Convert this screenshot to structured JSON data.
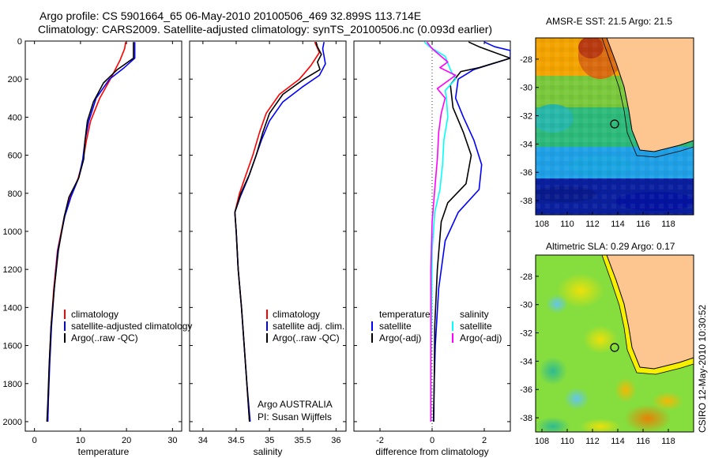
{
  "header": {
    "line1": "Argo profile: CS 5901664_65 06-May-2010 20100506_469 32.899S 113.714E",
    "line2": "Climatology: CARS2009. Satellite-adjusted climatology: synTS_20100506.nc (0.093d earlier)"
  },
  "colors": {
    "climatology": "#ff0000",
    "satellite": "#0000ff",
    "argo": "#000000",
    "argo_adj_salinity": "#ff00ff",
    "satellite_salinity": "#00ffff",
    "land": "#fdc590"
  },
  "chart_data": [
    {
      "type": "line",
      "id": "temperature",
      "xlabel": "temperature",
      "ylabel": "",
      "xlim": [
        -2,
        32
      ],
      "ylim": [
        0,
        2050
      ],
      "y_inverted": true,
      "xticks": [
        0,
        10,
        20,
        30
      ],
      "yticks": [
        0,
        200,
        400,
        600,
        800,
        1000,
        1200,
        1400,
        1600,
        1800,
        2000
      ],
      "legend": [
        "climatology",
        "satellite-adjusted climatology",
        "Argo(..raw -QC)"
      ],
      "series": [
        {
          "name": "climatology",
          "color": "#ff0000",
          "points": [
            [
              19.8,
              5
            ],
            [
              19.6,
              40
            ],
            [
              18.6,
              100
            ],
            [
              16.5,
              200
            ],
            [
              14.2,
              300
            ],
            [
              12.2,
              420
            ],
            [
              11.3,
              520
            ],
            [
              10.6,
              620
            ],
            [
              9.5,
              720
            ],
            [
              7.8,
              820
            ],
            [
              6.5,
              920
            ],
            [
              5.0,
              1100
            ],
            [
              4.2,
              1300
            ],
            [
              3.6,
              1500
            ],
            [
              3.2,
              1700
            ],
            [
              3.0,
              1900
            ],
            [
              2.9,
              2000
            ]
          ]
        },
        {
          "name": "satellite-adjusted climatology",
          "color": "#0000ff",
          "points": [
            [
              21.8,
              5
            ],
            [
              21.8,
              40
            ],
            [
              21.8,
              90
            ],
            [
              19.5,
              140
            ],
            [
              16.3,
              200
            ],
            [
              13.4,
              300
            ],
            [
              11.8,
              420
            ],
            [
              11.0,
              520
            ],
            [
              10.5,
              620
            ],
            [
              9.6,
              720
            ],
            [
              7.9,
              820
            ],
            [
              6.6,
              920
            ],
            [
              5.1,
              1100
            ],
            [
              4.3,
              1300
            ],
            [
              3.7,
              1500
            ],
            [
              3.3,
              1700
            ],
            [
              3.0,
              1900
            ],
            [
              2.9,
              2000
            ]
          ]
        },
        {
          "name": "Argo(..raw -QC)",
          "color": "#000000",
          "points": [
            [
              21.5,
              5
            ],
            [
              21.5,
              50
            ],
            [
              21.5,
              90
            ],
            [
              18.0,
              150
            ],
            [
              15.0,
              220
            ],
            [
              12.8,
              320
            ],
            [
              11.5,
              420
            ],
            [
              11.0,
              520
            ],
            [
              10.7,
              620
            ],
            [
              9.6,
              720
            ],
            [
              7.5,
              820
            ],
            [
              6.5,
              920
            ],
            [
              5.2,
              1100
            ],
            [
              4.3,
              1300
            ],
            [
              3.6,
              1500
            ],
            [
              3.2,
              1700
            ],
            [
              2.9,
              1900
            ],
            [
              2.7,
              2000
            ]
          ]
        }
      ]
    },
    {
      "type": "line",
      "id": "salinity",
      "xlabel": "salinity",
      "xlim": [
        33.8,
        36.15
      ],
      "ylim": [
        0,
        2050
      ],
      "y_inverted": true,
      "xticks": [
        34,
        34.5,
        35,
        35.5,
        36
      ],
      "legend": [
        "climatology",
        "satellite adj. clim.",
        "Argo(..raw -QC)"
      ],
      "series": [
        {
          "name": "climatology",
          "color": "#ff0000",
          "points": [
            [
              35.68,
              5
            ],
            [
              35.75,
              60
            ],
            [
              35.62,
              130
            ],
            [
              35.45,
              200
            ],
            [
              35.15,
              280
            ],
            [
              34.95,
              380
            ],
            [
              34.85,
              480
            ],
            [
              34.75,
              600
            ],
            [
              34.65,
              700
            ],
            [
              34.55,
              800
            ],
            [
              34.48,
              900
            ],
            [
              34.5,
              1000
            ],
            [
              34.53,
              1200
            ],
            [
              34.58,
              1400
            ],
            [
              34.62,
              1600
            ],
            [
              34.66,
              1800
            ],
            [
              34.7,
              2000
            ]
          ]
        },
        {
          "name": "satellite adj. clim.",
          "color": "#0000ff",
          "points": [
            [
              35.82,
              5
            ],
            [
              35.8,
              40
            ],
            [
              35.84,
              120
            ],
            [
              35.75,
              180
            ],
            [
              35.5,
              240
            ],
            [
              35.2,
              320
            ],
            [
              35.0,
              420
            ],
            [
              34.88,
              520
            ],
            [
              34.78,
              620
            ],
            [
              34.68,
              720
            ],
            [
              34.56,
              820
            ],
            [
              34.48,
              900
            ],
            [
              34.5,
              1000
            ],
            [
              34.53,
              1200
            ],
            [
              34.58,
              1400
            ],
            [
              34.62,
              1600
            ],
            [
              34.66,
              1800
            ],
            [
              34.71,
              2000
            ]
          ]
        },
        {
          "name": "Argo(..raw -QC)",
          "color": "#000000",
          "points": [
            [
              35.7,
              5
            ],
            [
              35.72,
              30
            ],
            [
              35.78,
              70
            ],
            [
              35.72,
              110
            ],
            [
              35.76,
              150
            ],
            [
              35.52,
              200
            ],
            [
              35.2,
              280
            ],
            [
              35.0,
              380
            ],
            [
              34.9,
              480
            ],
            [
              34.8,
              600
            ],
            [
              34.7,
              700
            ],
            [
              34.57,
              800
            ],
            [
              34.48,
              900
            ],
            [
              34.5,
              1000
            ],
            [
              34.53,
              1200
            ],
            [
              34.58,
              1400
            ],
            [
              34.62,
              1600
            ],
            [
              34.66,
              1800
            ],
            [
              34.7,
              2000
            ]
          ]
        }
      ]
    },
    {
      "type": "line",
      "id": "difference",
      "xlabel": "difference from climatology",
      "xlim": [
        -3,
        3
      ],
      "ylim": [
        0,
        2050
      ],
      "y_inverted": true,
      "xticks": [
        -2,
        0,
        2
      ],
      "legend": [
        "temperature",
        "satellite",
        "Argo(-adj)",
        "salinity",
        "satellite",
        "Argo(-adj)"
      ],
      "series": [
        {
          "name": "satellite",
          "color": "#0000ff",
          "points": [
            [
              2.0,
              5
            ],
            [
              2.4,
              30
            ],
            [
              3.0,
              50
            ],
            [
              3.0,
              90
            ],
            [
              1.6,
              150
            ],
            [
              1.0,
              200
            ],
            [
              0.9,
              300
            ],
            [
              1.2,
              400
            ],
            [
              1.6,
              520
            ],
            [
              1.9,
              650
            ],
            [
              1.8,
              780
            ],
            [
              1.0,
              900
            ],
            [
              0.5,
              1050
            ],
            [
              0.25,
              1300
            ],
            [
              0.12,
              1600
            ],
            [
              0.08,
              1800
            ],
            [
              0.05,
              2000
            ]
          ]
        },
        {
          "name": "Argo(-adj)",
          "color": "#000000",
          "points": [
            [
              1.4,
              5
            ],
            [
              1.8,
              30
            ],
            [
              2.4,
              60
            ],
            [
              3.0,
              90
            ],
            [
              1.8,
              140
            ],
            [
              1.1,
              160
            ],
            [
              0.7,
              230
            ],
            [
              0.8,
              350
            ],
            [
              1.2,
              480
            ],
            [
              1.5,
              600
            ],
            [
              1.3,
              750
            ],
            [
              0.6,
              850
            ],
            [
              0.35,
              950
            ],
            [
              0.2,
              1200
            ],
            [
              0.1,
              1500
            ],
            [
              0.08,
              1800
            ],
            [
              0.06,
              2000
            ]
          ]
        },
        {
          "name": "satellite",
          "color": "#00ffff",
          "points": [
            [
              -0.3,
              5
            ],
            [
              -0.1,
              30
            ],
            [
              0.5,
              80
            ],
            [
              0.7,
              150
            ],
            [
              0.9,
              200
            ],
            [
              0.5,
              260
            ],
            [
              0.55,
              300
            ],
            [
              0.6,
              400
            ],
            [
              0.45,
              520
            ],
            [
              0.4,
              650
            ],
            [
              0.3,
              780
            ],
            [
              0.1,
              900
            ],
            [
              0.0,
              1100
            ],
            [
              -0.02,
              1400
            ],
            [
              -0.05,
              1700
            ],
            [
              -0.05,
              2000
            ]
          ]
        },
        {
          "name": "Argo(-adj)",
          "color": "#ff00ff",
          "points": [
            [
              -0.2,
              5
            ],
            [
              0.0,
              40
            ],
            [
              0.6,
              110
            ],
            [
              0.3,
              140
            ],
            [
              0.9,
              180
            ],
            [
              0.2,
              250
            ],
            [
              0.5,
              300
            ],
            [
              0.35,
              380
            ],
            [
              0.25,
              480
            ],
            [
              0.2,
              620
            ],
            [
              0.1,
              780
            ],
            [
              0.0,
              950
            ],
            [
              -0.05,
              1200
            ],
            [
              -0.05,
              1500
            ],
            [
              -0.05,
              1800
            ],
            [
              -0.05,
              2000
            ]
          ]
        }
      ],
      "credit": [
        "Argo AUSTRALIA",
        "PI: Susan Wijffels"
      ]
    },
    {
      "type": "heatmap",
      "id": "sst-map",
      "title": "AMSR-E SST: 21.5 Argo: 21.5",
      "xlim": [
        107.5,
        120
      ],
      "ylim": [
        -39,
        -26.5
      ],
      "xticks": [
        108,
        110,
        112,
        114,
        116,
        118
      ],
      "yticks": [
        -28,
        -30,
        -32,
        -34,
        -36,
        -38
      ],
      "float_position": [
        113.714,
        -32.899
      ]
    },
    {
      "type": "heatmap",
      "id": "sla-map",
      "title": "Altimetric SLA: 0.29 Argo: 0.17",
      "xlim": [
        107.5,
        120
      ],
      "ylim": [
        -39,
        -26.5
      ],
      "xticks": [
        108,
        110,
        112,
        114,
        116,
        118
      ],
      "yticks": [
        -28,
        -30,
        -32,
        -34,
        -36,
        -38
      ],
      "float_position": [
        113.714,
        -32.899
      ],
      "side_label": "CSIRO 12-May-2010 10:30:52"
    }
  ]
}
